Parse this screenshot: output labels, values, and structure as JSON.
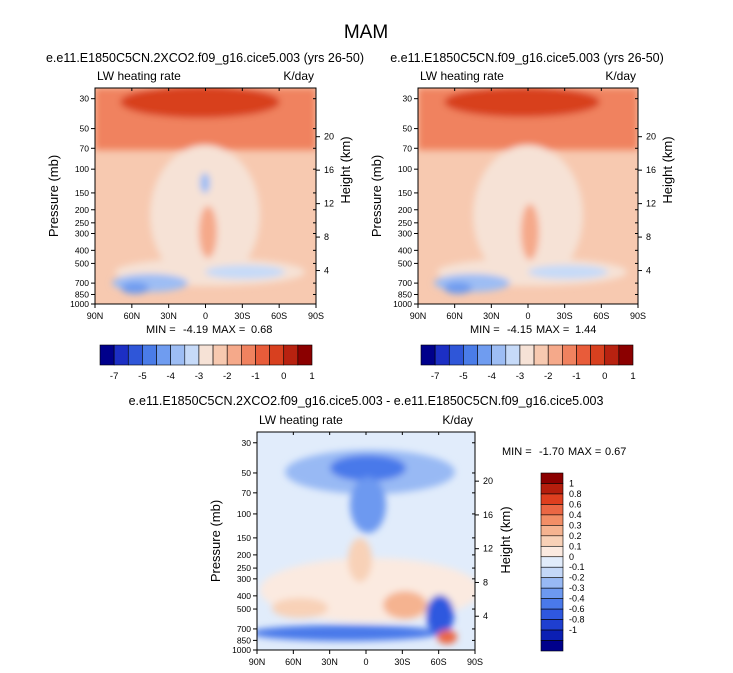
{
  "figure_title": "MAM",
  "colors": {
    "abs_scale": [
      "#00008b",
      "#1c2fc4",
      "#2f56d8",
      "#4a7ce8",
      "#6f9cf0",
      "#9dbdf4",
      "#c6daf8",
      "#f6e2d6",
      "#f7c9b0",
      "#f5a98a",
      "#f0825f",
      "#e85c3a",
      "#d8401f",
      "#b82210",
      "#8b0000"
    ],
    "diff_scale": [
      "#00008b",
      "#0b1fb3",
      "#1f3fd0",
      "#2f58df",
      "#4a79ea",
      "#6d99f0",
      "#98b9f4",
      "#c4d8f8",
      "#e1ecfb",
      "#fbeae0",
      "#f8d1b7",
      "#f5b390",
      "#f28e66",
      "#eb6744",
      "#df3f1f",
      "#b51e0d",
      "#8b0000"
    ]
  },
  "chart_data": [
    {
      "type": "heatmap",
      "title": "e.e11.E1850C5CN.2XCO2.f09_g16.cice5.003 (yrs 26-50)",
      "left_label": "LW heating rate",
      "right_label": "K/day",
      "xlabel": "",
      "ylabel": "Pressure (mb)",
      "ylabel_right": "Height (km)",
      "x_ticks": [
        "90N",
        "60N",
        "30N",
        "0",
        "30S",
        "60S",
        "90S"
      ],
      "y_ticks": [
        30,
        50,
        70,
        100,
        150,
        200,
        250,
        300,
        400,
        500,
        700,
        850,
        1000
      ],
      "height_ticks": [
        20,
        16,
        12,
        8,
        4
      ],
      "stats": {
        "min_label": "MIN =",
        "min": "-4.19",
        "max_label": "MAX =",
        "max": "0.68"
      },
      "colorbar_labels": [
        "-7",
        "-5",
        "-4",
        "-3",
        "-2",
        "-1",
        "0",
        "1"
      ]
    },
    {
      "type": "heatmap",
      "title": "e.e11.E1850C5CN.f09_g16.cice5.003 (yrs 26-50)",
      "left_label": "LW heating rate",
      "right_label": "K/day",
      "xlabel": "",
      "ylabel": "Pressure (mb)",
      "ylabel_right": "Height (km)",
      "x_ticks": [
        "90N",
        "60N",
        "30N",
        "0",
        "30S",
        "60S",
        "90S"
      ],
      "y_ticks": [
        30,
        50,
        70,
        100,
        150,
        200,
        250,
        300,
        400,
        500,
        700,
        850,
        1000
      ],
      "height_ticks": [
        20,
        16,
        12,
        8,
        4
      ],
      "stats": {
        "min_label": "MIN =",
        "min": "-4.15",
        "max_label": "MAX =",
        "max": "1.44"
      },
      "colorbar_labels": [
        "-7",
        "-5",
        "-4",
        "-3",
        "-2",
        "-1",
        "0",
        "1"
      ]
    },
    {
      "type": "heatmap",
      "title": "e.e11.E1850C5CN.2XCO2.f09_g16.cice5.003 - e.e11.E1850C5CN.f09_g16.cice5.003",
      "left_label": "LW heating rate",
      "right_label": "K/day",
      "xlabel": "",
      "ylabel": "Pressure (mb)",
      "ylabel_right": "Height (km)",
      "x_ticks": [
        "90N",
        "60N",
        "30N",
        "0",
        "30S",
        "60S",
        "90S"
      ],
      "y_ticks": [
        30,
        50,
        70,
        100,
        150,
        200,
        250,
        300,
        400,
        500,
        700,
        850,
        1000
      ],
      "height_ticks": [
        20,
        16,
        12,
        8,
        4
      ],
      "stats": {
        "min_label": "MIN =",
        "min": "-1.70",
        "max_label": "MAX =",
        "max": "0.67"
      },
      "colorbar_labels": [
        "1",
        "0.8",
        "0.6",
        "0.4",
        "0.3",
        "0.2",
        "0.1",
        "0",
        "-0.1",
        "-0.2",
        "-0.3",
        "-0.4",
        "-0.6",
        "-0.8",
        "-1"
      ]
    }
  ]
}
